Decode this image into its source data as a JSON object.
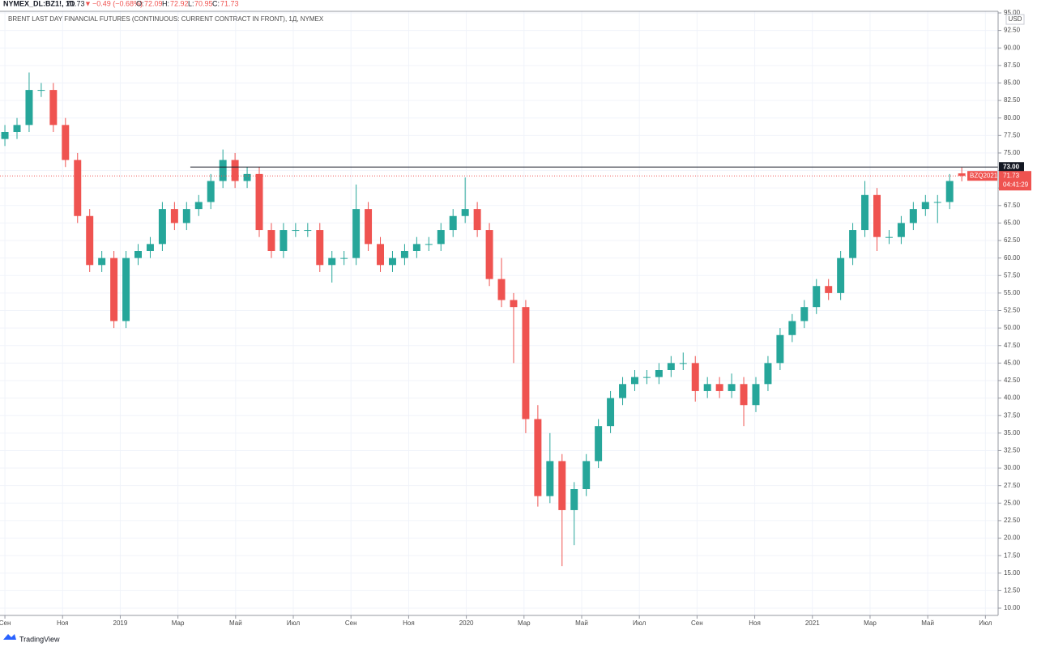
{
  "header": {
    "symbol": "NYMEX_DL:BZ1!, 1D",
    "last": "71.73",
    "arrow": "▼",
    "change": "−0.49 (−0.68%)",
    "o_label": "O:",
    "o": "72.09",
    "h_label": "H:",
    "h": "72.92",
    "l_label": "L:",
    "l": "70.95",
    "c_label": "C:",
    "c": "71.73"
  },
  "footer": "TradingView",
  "chart_data": {
    "type": "candlestick",
    "title": "BRENT LAST DAY FINANCIAL FUTURES (CONTINUOUS: CURRENT CONTRACT IN FRONT), 1Д, NYMEX",
    "currency": "USD",
    "up_color": "#26a69a",
    "down_color": "#ef5350",
    "grid": true,
    "x": [
      0,
      0.42,
      0.84,
      1.26,
      1.68,
      2.1,
      2.52,
      2.94,
      3.36,
      3.78,
      4.2,
      4.62,
      5.04,
      5.46,
      5.88,
      6.3,
      6.72,
      7.14,
      7.56,
      7.98,
      8.4,
      8.82,
      9.24,
      9.66,
      10.08,
      10.5,
      10.92,
      11.34,
      11.76,
      12.18,
      12.6,
      13.02,
      13.44,
      13.86,
      14.28,
      14.7,
      15.12,
      15.54,
      15.96,
      16.38,
      16.8,
      17.22,
      17.64,
      18.06,
      18.48,
      18.9,
      19.32,
      19.74,
      20.16,
      20.58,
      21,
      21.42,
      21.84,
      22.26,
      22.68,
      23.1,
      23.52,
      23.94,
      24.36,
      24.78,
      25.2,
      25.62,
      26.04,
      26.46,
      26.88,
      27.3,
      27.72,
      28.14,
      28.56,
      28.98,
      29.4,
      29.82,
      30.24,
      30.66,
      31.08,
      31.5,
      31.92,
      32.34,
      32.76,
      33.18
    ],
    "open": [
      77,
      78,
      79,
      84,
      84,
      79,
      74,
      66,
      59,
      60,
      51,
      60,
      61,
      62,
      67,
      65,
      67,
      68,
      71,
      74,
      71,
      72,
      64,
      61,
      64,
      64,
      64,
      59,
      60,
      60,
      67,
      62,
      59,
      60,
      61,
      62,
      62,
      64,
      66,
      67,
      64,
      57,
      54,
      53,
      37,
      26,
      31,
      24,
      27,
      31,
      36,
      40,
      42,
      43,
      43,
      44,
      45,
      45,
      41,
      42,
      41,
      42,
      39,
      42,
      45,
      49,
      51,
      53,
      56,
      55,
      60,
      64,
      69,
      63,
      63,
      65,
      67,
      68,
      68,
      72.09
    ],
    "high": [
      79,
      80,
      86.5,
      85,
      85,
      80,
      75,
      67,
      61,
      61,
      61,
      62,
      63,
      68,
      68,
      68,
      69,
      72,
      75.5,
      75,
      73,
      73,
      65,
      65,
      65,
      65,
      65,
      61,
      61,
      70.5,
      68,
      63,
      61,
      62,
      63,
      63,
      65,
      67,
      71.5,
      68,
      65,
      60,
      55,
      54,
      39,
      35,
      32,
      28,
      32,
      37,
      41,
      43,
      44,
      44,
      45,
      46,
      46.5,
      46,
      43,
      43,
      43.5,
      43,
      43,
      46,
      50,
      52,
      54,
      57,
      57,
      61,
      65,
      71,
      70,
      64,
      66,
      68,
      69,
      69,
      72,
      72.92
    ],
    "low": [
      76,
      77,
      78,
      83,
      78,
      73,
      65,
      58,
      58,
      50,
      50,
      59,
      60,
      61,
      64,
      64,
      66,
      67,
      70,
      70,
      70,
      63,
      60,
      60,
      63,
      63,
      58,
      56.5,
      59,
      59,
      61,
      58,
      58,
      59,
      60,
      61,
      61,
      63,
      65,
      63,
      56,
      53,
      45,
      35,
      24.5,
      25,
      16,
      19,
      26,
      30,
      35,
      39,
      41,
      42,
      42,
      43,
      44,
      39.5,
      40,
      40,
      40,
      36,
      38,
      41,
      44,
      48,
      50,
      52,
      54,
      54,
      59,
      63,
      61,
      62,
      62,
      64,
      66,
      65,
      67,
      70.95
    ],
    "close": [
      78,
      79,
      84,
      84,
      79,
      74,
      66,
      59,
      60,
      51,
      60,
      61,
      62,
      67,
      65,
      67,
      68,
      71,
      74,
      71,
      72,
      64,
      61,
      64,
      64,
      64,
      59,
      60,
      60,
      67,
      62,
      59,
      60,
      61,
      62,
      62,
      64,
      66,
      67,
      64,
      57,
      54,
      53,
      37,
      26,
      31,
      24,
      27,
      31,
      36,
      40,
      42,
      43,
      43,
      44,
      45,
      45,
      41,
      42,
      41,
      42,
      39,
      42,
      45,
      49,
      51,
      53,
      56,
      55,
      60,
      64,
      69,
      63,
      63,
      65,
      67,
      68,
      68,
      71,
      71.73
    ],
    "xlim": [
      -0.17,
      34.44
    ],
    "xticks": [
      {
        "value": 0,
        "label": "Сен"
      },
      {
        "value": 2,
        "label": "Ноя"
      },
      {
        "value": 4,
        "label": "2019"
      },
      {
        "value": 6,
        "label": "Мар"
      },
      {
        "value": 8,
        "label": "Май"
      },
      {
        "value": 10,
        "label": "Июл"
      },
      {
        "value": 12,
        "label": "Сен"
      },
      {
        "value": 14,
        "label": "Ноя"
      },
      {
        "value": 16,
        "label": "2020"
      },
      {
        "value": 18,
        "label": "Мар"
      },
      {
        "value": 20,
        "label": "Май"
      },
      {
        "value": 22,
        "label": "Июл"
      },
      {
        "value": 24,
        "label": "Сен"
      },
      {
        "value": 26,
        "label": "Ноя"
      },
      {
        "value": 28,
        "label": "2021"
      },
      {
        "value": 30,
        "label": "Мар"
      },
      {
        "value": 32,
        "label": "Май"
      },
      {
        "value": 34,
        "label": "Июл"
      }
    ],
    "ylim": [
      8.96,
      95.23
    ],
    "yticks": [
      {
        "value": 10,
        "label": "10.00"
      },
      {
        "value": 12.5,
        "label": "12.50"
      },
      {
        "value": 15,
        "label": "15.00"
      },
      {
        "value": 17.5,
        "label": "17.50"
      },
      {
        "value": 20,
        "label": "20.00"
      },
      {
        "value": 22.5,
        "label": "22.50"
      },
      {
        "value": 25,
        "label": "25.00"
      },
      {
        "value": 27.5,
        "label": "27.50"
      },
      {
        "value": 30,
        "label": "30.00"
      },
      {
        "value": 32.5,
        "label": "32.50"
      },
      {
        "value": 35,
        "label": "35.00"
      },
      {
        "value": 37.5,
        "label": "37.50"
      },
      {
        "value": 40,
        "label": "40.00"
      },
      {
        "value": 42.5,
        "label": "42.50"
      },
      {
        "value": 45,
        "label": "45.00"
      },
      {
        "value": 47.5,
        "label": "47.50"
      },
      {
        "value": 50,
        "label": "50.00"
      },
      {
        "value": 52.5,
        "label": "52.50"
      },
      {
        "value": 55,
        "label": "55.00"
      },
      {
        "value": 57.5,
        "label": "57.50"
      },
      {
        "value": 60,
        "label": "60.00"
      },
      {
        "value": 62.5,
        "label": "62.50"
      },
      {
        "value": 65,
        "label": "65.00"
      },
      {
        "value": 67.5,
        "label": "67.50"
      },
      {
        "value": 70,
        "label": "70.00"
      },
      {
        "value": 72.5,
        "label": "72.50"
      },
      {
        "value": 75,
        "label": "75.00"
      },
      {
        "value": 77.5,
        "label": "77.50"
      },
      {
        "value": 80,
        "label": "80.00"
      },
      {
        "value": 82.5,
        "label": "82.50"
      },
      {
        "value": 85,
        "label": "85.00"
      },
      {
        "value": 87.5,
        "label": "87.50"
      },
      {
        "value": 90,
        "label": "90.00"
      },
      {
        "value": 92.5,
        "label": "92.50"
      },
      {
        "value": 95,
        "label": "95.00"
      }
    ],
    "hline": {
      "value": 73,
      "label": "73.00",
      "x_start": 6.43,
      "color": "#131722"
    },
    "last_price": {
      "value": 71.73,
      "label": "71.73",
      "symbol": "BZQ2021",
      "countdown": "04:41:29",
      "color": "#ef5350"
    }
  }
}
